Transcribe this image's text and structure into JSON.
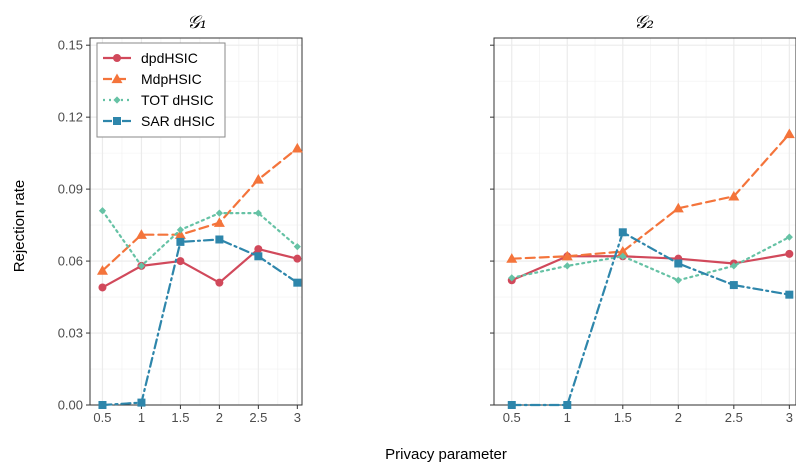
{
  "chart_data": {
    "type": "line",
    "ylabel": "Rejection rate",
    "xlabel": "Privacy parameter",
    "x": [
      0.5,
      1,
      1.5,
      2,
      2.5,
      3
    ],
    "x_tick_labels": [
      "0.5",
      "1",
      "1.5",
      "2",
      "2.5",
      "3"
    ],
    "ylim": [
      0,
      0.153
    ],
    "y_ticks": [
      0.0,
      0.03,
      0.06,
      0.09,
      0.12,
      0.15
    ],
    "y_tick_labels": [
      "0.00",
      "0.03",
      "0.06",
      "0.09",
      "0.12",
      "0.15"
    ],
    "grid": true,
    "legend": {
      "placement": "top-left of first panel"
    },
    "series_styles": [
      {
        "name": "dpdHSIC",
        "color": "#d1495b",
        "marker": "circle",
        "dash": "solid"
      },
      {
        "name": "MdpHSIC",
        "color": "#f4743b",
        "marker": "triangle",
        "dash": "dashed"
      },
      {
        "name": "TOT dHSIC",
        "color": "#66c2a5",
        "marker": "diamond",
        "dash": "dotted"
      },
      {
        "name": "SAR dHSIC",
        "color": "#2e86ab",
        "marker": "square",
        "dash": "dotdash"
      }
    ],
    "panels": [
      {
        "title": "𝒢₁",
        "series": [
          {
            "name": "dpdHSIC",
            "values": [
              0.049,
              0.058,
              0.06,
              0.051,
              0.065,
              0.061
            ]
          },
          {
            "name": "MdpHSIC",
            "values": [
              0.056,
              0.071,
              0.071,
              0.076,
              0.094,
              0.107
            ]
          },
          {
            "name": "TOT dHSIC",
            "values": [
              0.081,
              0.058,
              0.073,
              0.08,
              0.08,
              0.066
            ]
          },
          {
            "name": "SAR dHSIC",
            "values": [
              0.0,
              0.001,
              0.068,
              0.069,
              0.062,
              0.051
            ]
          }
        ]
      },
      {
        "title": "𝒢₂",
        "series": [
          {
            "name": "dpdHSIC",
            "values": [
              0.052,
              0.062,
              0.062,
              0.061,
              0.059,
              0.063
            ]
          },
          {
            "name": "MdpHSIC",
            "values": [
              0.061,
              0.062,
              0.064,
              0.082,
              0.087,
              0.113
            ]
          },
          {
            "name": "TOT dHSIC",
            "values": [
              0.053,
              0.058,
              0.062,
              0.052,
              0.058,
              0.07
            ]
          },
          {
            "name": "SAR dHSIC",
            "values": [
              0.0,
              0.0,
              0.072,
              0.059,
              0.05,
              0.046
            ]
          }
        ]
      }
    ]
  }
}
